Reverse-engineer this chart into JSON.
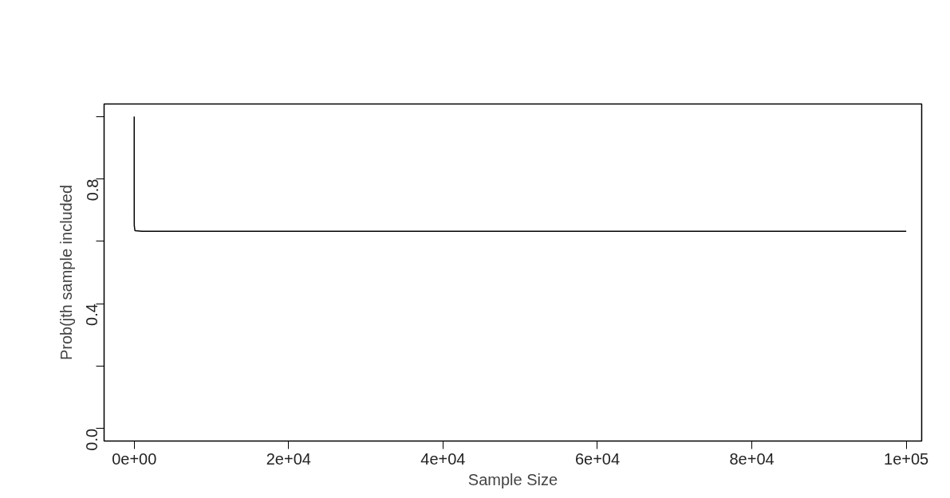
{
  "chart_data": {
    "type": "line",
    "xlabel": "Sample Size",
    "ylabel": "Prob(jth sample included",
    "x": [
      1,
      2,
      3,
      5,
      10,
      100,
      1000,
      100000
    ],
    "series": [
      {
        "color": "#000000",
        "values": [
          1.0,
          0.75,
          0.7,
          0.67,
          0.65,
          0.634,
          0.632,
          0.632
        ]
      }
    ],
    "xlim": [
      -3900,
      102000
    ],
    "ylim": [
      -0.04,
      1.04
    ],
    "xticks": [
      {
        "value": 0,
        "label": "0e+00"
      },
      {
        "value": 20000,
        "label": "2e+04"
      },
      {
        "value": 40000,
        "label": "4e+04"
      },
      {
        "value": 60000,
        "label": "6e+04"
      },
      {
        "value": 80000,
        "label": "8e+04"
      },
      {
        "value": 100000,
        "label": "1e+05"
      }
    ],
    "yticks": [
      {
        "value": 0,
        "label": "0.0"
      },
      {
        "value": 0.2,
        "label": null
      },
      {
        "value": 0.4,
        "label": "0.4"
      },
      {
        "value": 0.6,
        "label": null
      },
      {
        "value": 0.8,
        "label": "0.8"
      },
      {
        "value": 1.0,
        "label": null
      }
    ],
    "grid": false,
    "marker": "none",
    "line_style": "solid"
  }
}
